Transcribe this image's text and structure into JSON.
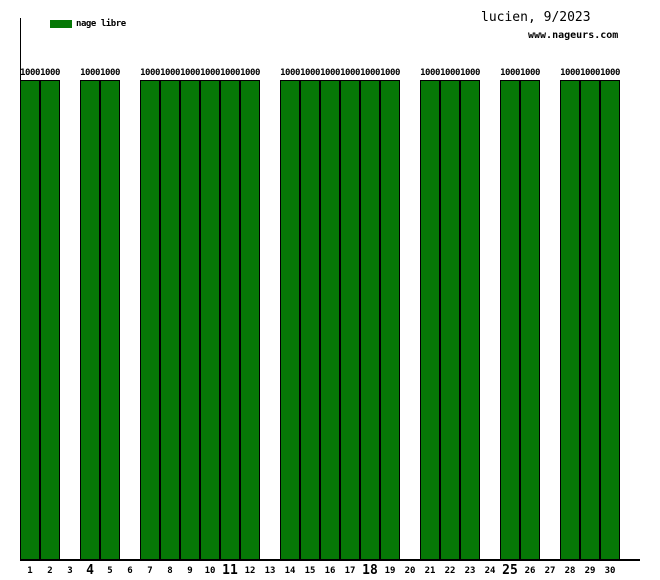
{
  "title": "lucien, 9/2023",
  "watermark": "www.nageurs.com",
  "legend": {
    "label": "nage libre",
    "color": "#067806"
  },
  "chart_data": {
    "type": "bar",
    "title": "lucien, 9/2023",
    "categories": [
      1,
      2,
      3,
      4,
      5,
      6,
      7,
      8,
      9,
      10,
      11,
      12,
      13,
      14,
      15,
      16,
      17,
      18,
      19,
      20,
      21,
      22,
      23,
      24,
      25,
      26,
      27,
      28,
      29,
      30
    ],
    "values": [
      1000,
      1000,
      0,
      1000,
      1000,
      0,
      1000,
      1000,
      1000,
      1000,
      1000,
      1000,
      0,
      1000,
      1000,
      1000,
      1000,
      1000,
      1000,
      0,
      1000,
      1000,
      1000,
      0,
      1000,
      1000,
      0,
      1000,
      1000,
      1000
    ],
    "series_name": "nage libre",
    "bar_color": "#067806",
    "bold_categories": [
      4,
      11,
      18,
      25
    ],
    "xlabel": "",
    "ylabel": "",
    "ylim": [
      0,
      1000
    ],
    "grid": false,
    "legend_position": "top-left"
  }
}
